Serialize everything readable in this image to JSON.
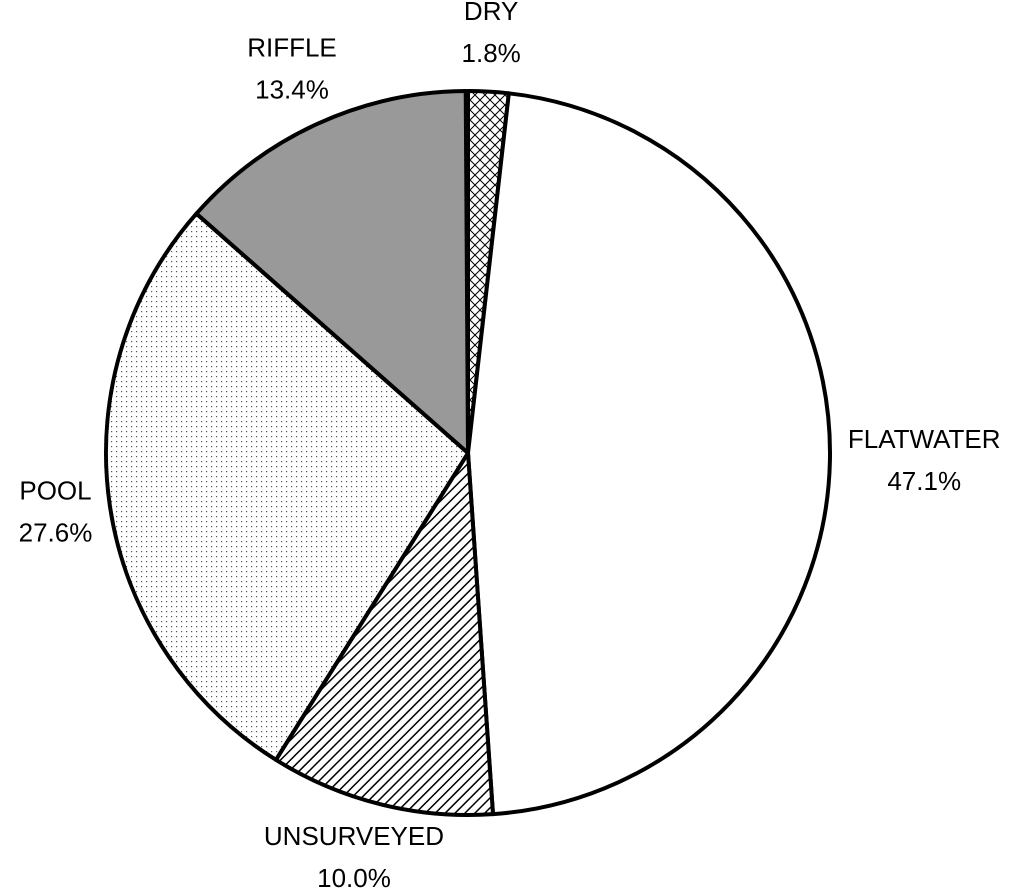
{
  "chart_data": {
    "type": "pie",
    "categories": [
      "DRY",
      "FLATWATER",
      "UNSURVEYED",
      "POOL",
      "RIFFLE"
    ],
    "values": [
      1.8,
      47.1,
      10.0,
      27.6,
      13.4
    ],
    "value_labels": [
      "1.8%",
      "47.1%",
      "10.0%",
      "27.6%",
      "13.4%"
    ]
  }
}
